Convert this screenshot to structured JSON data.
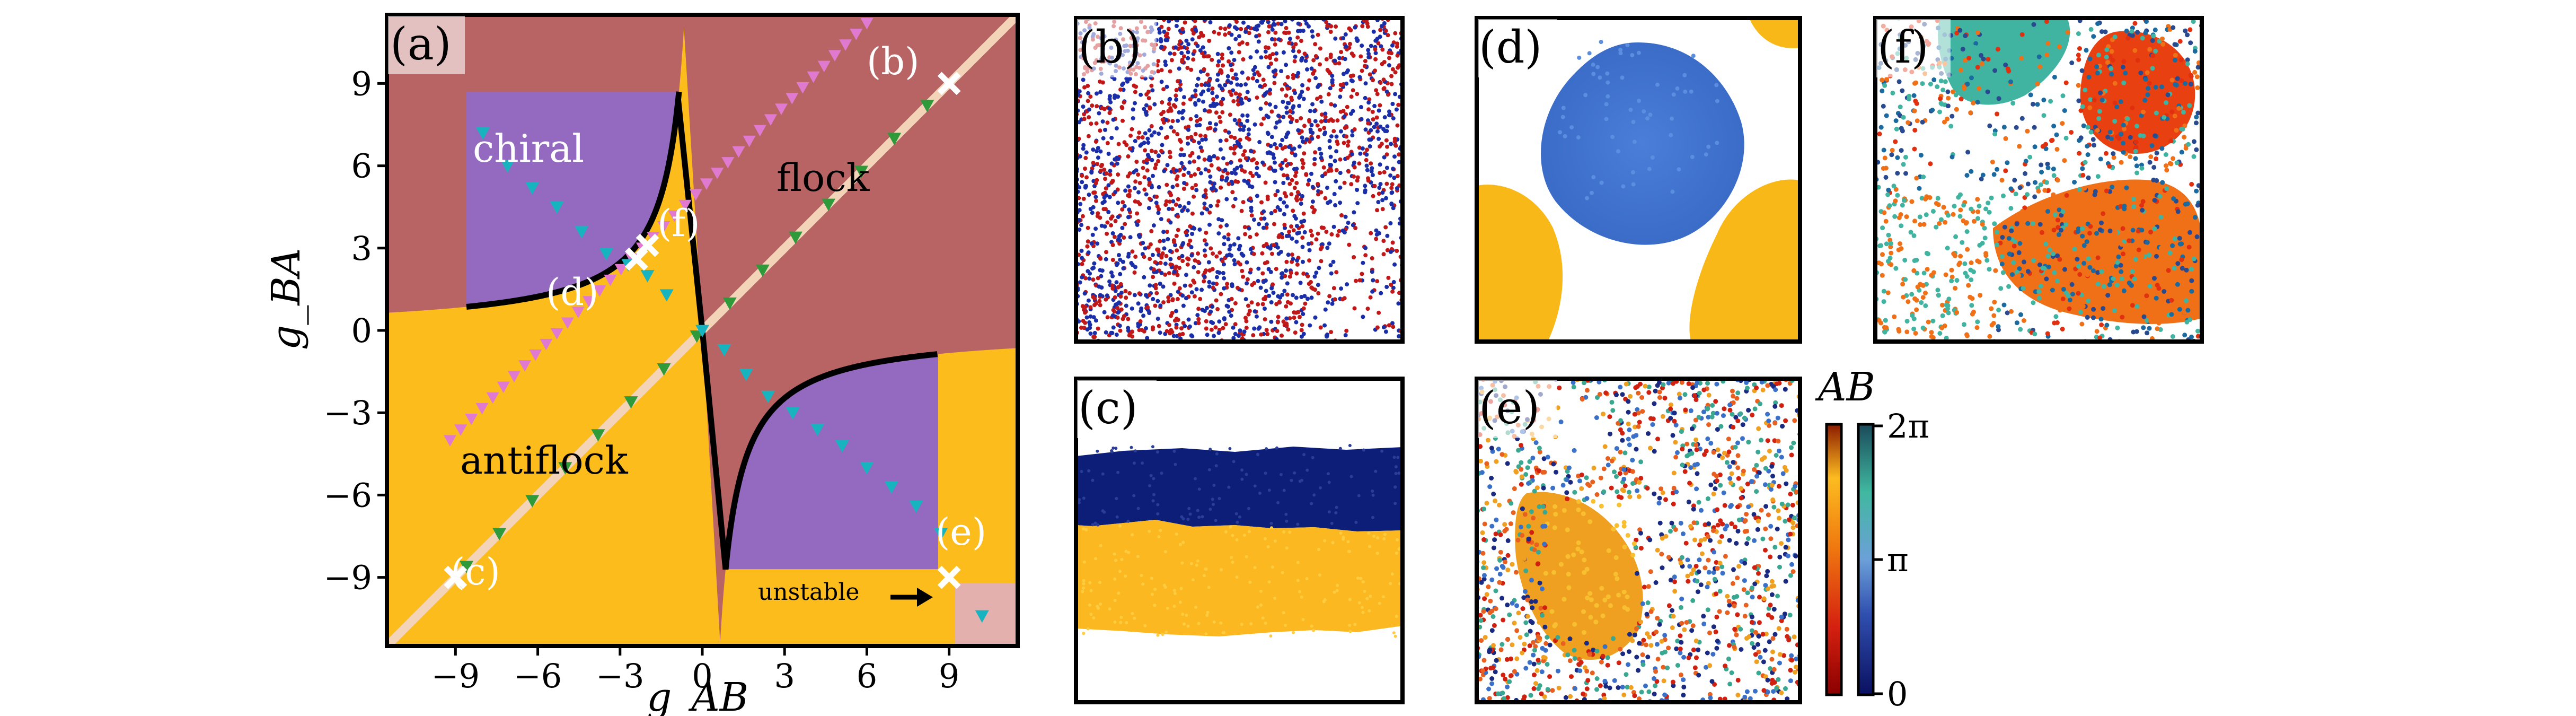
{
  "chart_data": {
    "type": "scatter",
    "panel_a": {
      "label": "(a)",
      "xlabel": "g_AB",
      "ylabel": "g_BA",
      "xlim": [
        -11.5,
        11.5
      ],
      "ylim": [
        -11.5,
        11.5
      ],
      "xticks": [
        "−9",
        "−6",
        "−3",
        "0",
        "3",
        "6",
        "9"
      ],
      "xtick_values": [
        -9,
        -6,
        -3,
        0,
        3,
        6,
        9
      ],
      "yticks": [
        "9",
        "6",
        "3",
        "0",
        "−3",
        "−6",
        "−9"
      ],
      "ytick_values": [
        9,
        6,
        3,
        0,
        -3,
        -6,
        -9
      ],
      "regions": {
        "chiral": "chiral",
        "flock": "flock",
        "antiflock": "antiflock",
        "unstable": "unstable"
      },
      "colors": {
        "flock": "#b96464",
        "antiflock": "#fcbc1c",
        "chiral": "#946ac0",
        "unstable": "#e4b0ae",
        "boundary": "#000000",
        "diagonal": "#f4d4b8",
        "pink_markers": "#e07ad0",
        "green_markers": "#2f9a3a",
        "cyan_markers": "#17b4c0"
      },
      "boundary_curve": "g_AB * g_BA = 2.4",
      "marked_points": [
        {
          "label": "(b)",
          "x": 9,
          "y": 9
        },
        {
          "label": "(c)",
          "x": -9,
          "y": -9
        },
        {
          "label": "(d)",
          "x": -2.4,
          "y": 2.6
        },
        {
          "label": "(e)",
          "x": 9,
          "y": -9
        },
        {
          "label": "(f)",
          "x": -2.0,
          "y": 3.1
        }
      ],
      "green_markers": [
        [
          -8.6,
          -8.6
        ],
        [
          -7.4,
          -7.4
        ],
        [
          -6.2,
          -6.2
        ],
        [
          -5,
          -5
        ],
        [
          -3.8,
          -3.8
        ],
        [
          -2.6,
          -2.6
        ],
        [
          -1.4,
          -1.4
        ],
        [
          -0.2,
          -0.2
        ],
        [
          1,
          1
        ],
        [
          2.2,
          2.2
        ],
        [
          3.4,
          3.4
        ],
        [
          4.6,
          4.6
        ],
        [
          5.8,
          5.8
        ],
        [
          7,
          7
        ],
        [
          8.2,
          8.2
        ]
      ],
      "cyan_markers": [
        [
          -8,
          7.2
        ],
        [
          -7.1,
          6
        ],
        [
          -6.2,
          5.2
        ],
        [
          -5.3,
          4.5
        ],
        [
          -4.4,
          3.6
        ],
        [
          -3.5,
          2.8
        ],
        [
          -2.7,
          2.4
        ],
        [
          -2,
          2
        ],
        [
          -1.3,
          1.3
        ],
        [
          0,
          0
        ],
        [
          0.8,
          -0.7
        ],
        [
          1.6,
          -1.6
        ],
        [
          2.4,
          -2.4
        ],
        [
          3.3,
          -3
        ],
        [
          4.2,
          -3.6
        ],
        [
          5.1,
          -4.2
        ],
        [
          6,
          -5
        ],
        [
          6.9,
          -5.7
        ],
        [
          7.8,
          -6.4
        ],
        [
          8.7,
          -7.4
        ],
        [
          10.2,
          -10.4
        ]
      ],
      "pink_markers_x_range": [
        -9.2,
        6
      ],
      "pink_markers_offset": 5.2,
      "pink_markers_count": 40
    },
    "colorbar": {
      "title": "AB",
      "ticks": [
        "2π",
        "π",
        "0"
      ],
      "colormap_A": "red-orange-yellow",
      "colormap_B": "navy-blue-teal"
    },
    "snapshots": [
      {
        "label": "(b)",
        "description_colors": [
          "#1a2ea8",
          "#c01818"
        ]
      },
      {
        "label": "(c)",
        "description_colors": [
          "#0c1e78",
          "#fcb820"
        ]
      },
      {
        "label": "(d)",
        "description_colors": [
          "#4a7ed8",
          "#f8b818"
        ]
      },
      {
        "label": "(e)",
        "description_colors": [
          "#f0a020",
          "#d02010",
          "#3a70c8",
          "#3aa890"
        ]
      },
      {
        "label": "(f)",
        "description_colors": [
          "#f07018",
          "#e03010",
          "#1a6aa0",
          "#40b4a0"
        ]
      }
    ]
  }
}
